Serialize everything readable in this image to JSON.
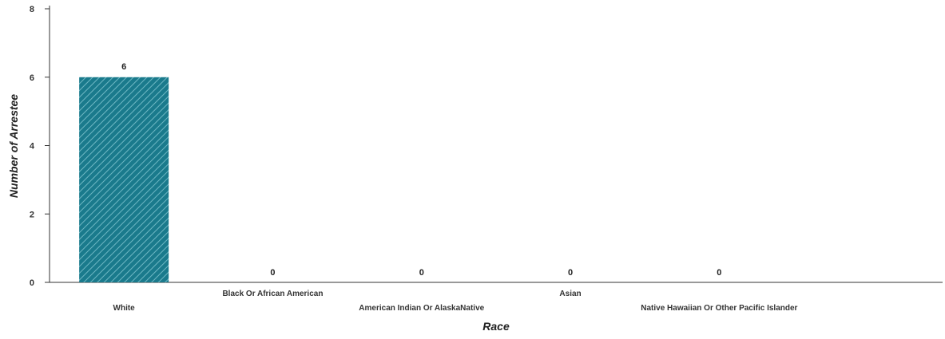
{
  "chart_data": {
    "type": "bar",
    "categories": [
      "White",
      "Black Or African American",
      "American Indian Or AlaskaNative",
      "Asian",
      "Native Hawaiian Or Other Pacific Islander"
    ],
    "values": [
      6,
      0,
      0,
      0,
      0
    ],
    "data_labels": [
      "6",
      "0",
      "0",
      "0",
      "0"
    ],
    "xlabel": "Race",
    "ylabel": "Number of Arrestee",
    "ylim": [
      0,
      8
    ],
    "yticks": [
      0,
      2,
      4,
      6,
      8
    ],
    "grid": false,
    "legend": "none",
    "bar_fill": "hatched",
    "colors": {
      "bar": "#1a7a8c",
      "hatch": "#6fb8c4",
      "axis": "#333333"
    }
  }
}
